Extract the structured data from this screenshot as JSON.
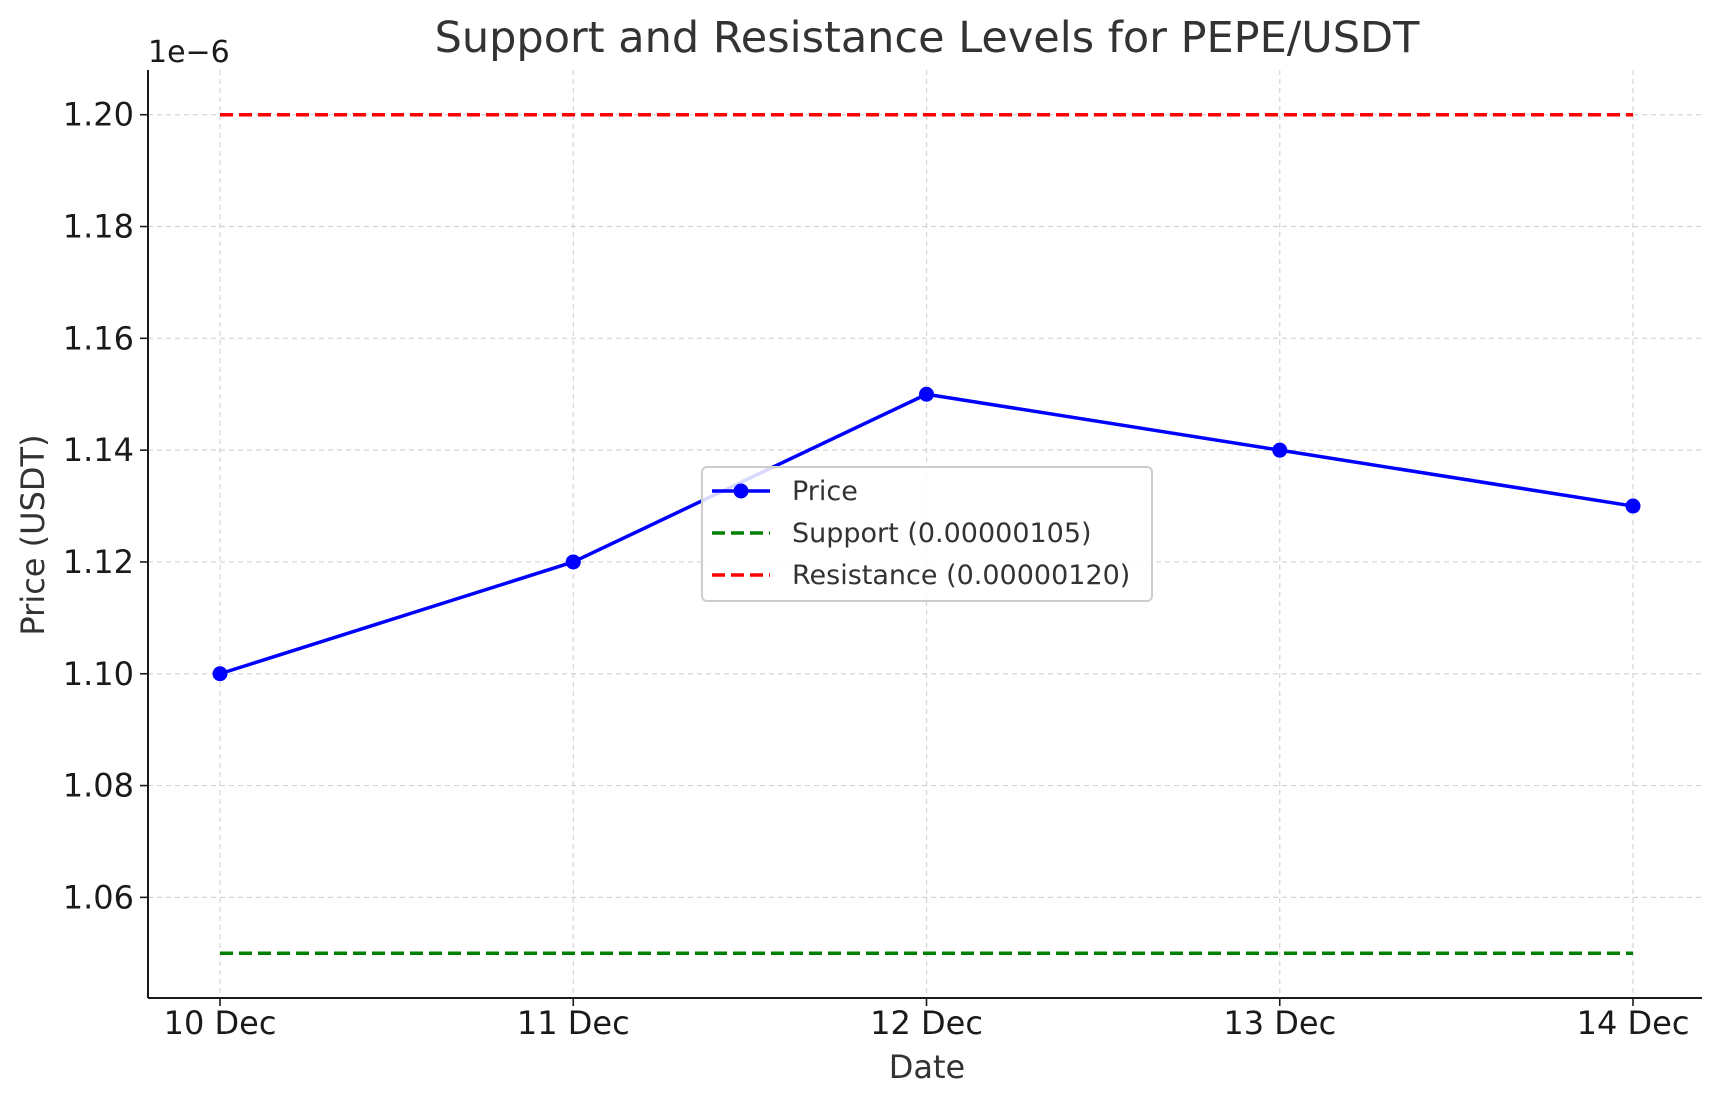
{
  "chart_data": {
    "type": "line",
    "title": "Support and Resistance Levels for PEPE/USDT",
    "xlabel": "Date",
    "ylabel": "Price (USDT)",
    "y_offset_label": "1e−6",
    "categories": [
      "10 Dec",
      "11 Dec",
      "12 Dec",
      "13 Dec",
      "14 Dec"
    ],
    "y_scale_factor": 1e-06,
    "ylim": [
      1.042e-06,
      1.208e-06
    ],
    "y_ticks": [
      1.06,
      1.08,
      1.1,
      1.12,
      1.14,
      1.16,
      1.18,
      1.2
    ],
    "y_tick_labels": [
      "1.06",
      "1.08",
      "1.10",
      "1.12",
      "1.14",
      "1.16",
      "1.18",
      "1.20"
    ],
    "grid": true,
    "legend_position": "center",
    "series": [
      {
        "name": "Price",
        "style": "line-marker",
        "color": "#0000ff",
        "values": [
          1.1e-06,
          1.12e-06,
          1.15e-06,
          1.14e-06,
          1.13e-06
        ]
      },
      {
        "name": "Support (0.00000105)",
        "style": "dashed",
        "color": "#008000",
        "values": [
          1.05e-06,
          1.05e-06,
          1.05e-06,
          1.05e-06,
          1.05e-06
        ]
      },
      {
        "name": "Resistance (0.00000120)",
        "style": "dashed",
        "color": "#ff0000",
        "values": [
          1.2e-06,
          1.2e-06,
          1.2e-06,
          1.2e-06,
          1.2e-06
        ]
      }
    ]
  }
}
